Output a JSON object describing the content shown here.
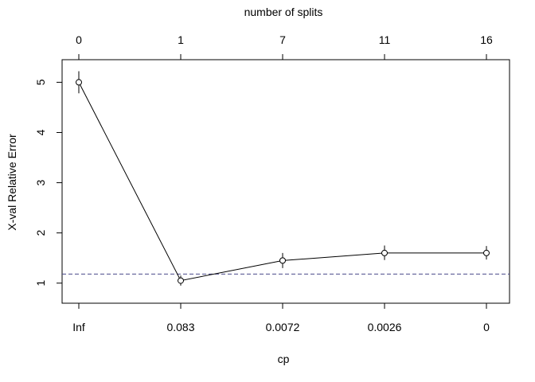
{
  "chart_data": {
    "type": "line",
    "title": "",
    "xlabel": "cp",
    "ylabel": "X-val Relative Error",
    "top_axis_label": "number of splits",
    "categories": [
      "Inf",
      "0.083",
      "0.0072",
      "0.0026",
      "0"
    ],
    "top_categories": [
      "0",
      "1",
      "7",
      "11",
      "16"
    ],
    "series": [
      {
        "values": [
          5.0,
          1.05,
          1.45,
          1.6,
          1.6
        ],
        "error_low": [
          4.78,
          0.95,
          1.3,
          1.46,
          1.47
        ],
        "error_high": [
          5.22,
          1.15,
          1.6,
          1.75,
          1.74
        ]
      }
    ],
    "reference_line": 1.18,
    "yticks": [
      1,
      2,
      3,
      4,
      5
    ],
    "ylim": [
      0.6,
      5.45
    ],
    "grid": false,
    "colors": {
      "line": "#000000",
      "reference": "#4a4a8a"
    }
  }
}
